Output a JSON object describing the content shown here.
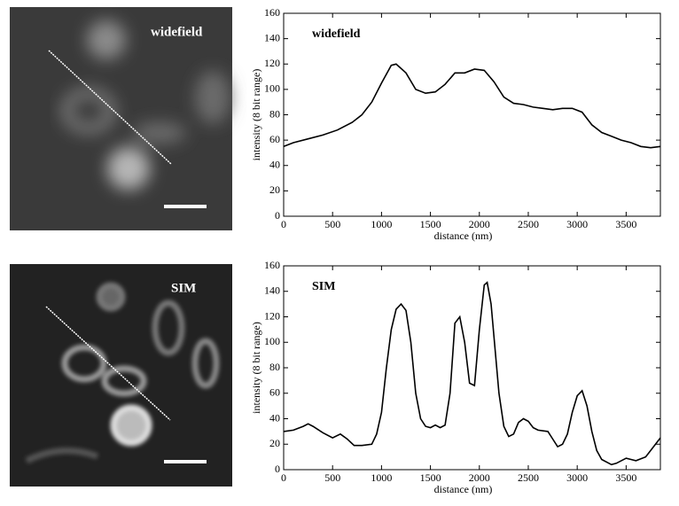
{
  "chart_data": [
    {
      "type": "line",
      "title": "widefield",
      "xlabel": "distance (nm)",
      "ylabel": "intensity (8 bit range)",
      "color": "#000000",
      "x": [
        0,
        100,
        250,
        400,
        550,
        700,
        800,
        900,
        1000,
        1100,
        1150,
        1250,
        1350,
        1450,
        1550,
        1650,
        1750,
        1850,
        1950,
        2050,
        2150,
        2250,
        2350,
        2450,
        2550,
        2650,
        2750,
        2850,
        2950,
        3050,
        3150,
        3250,
        3350,
        3450,
        3550,
        3650,
        3750,
        3850
      ],
      "values": [
        55,
        58,
        61,
        64,
        68,
        74,
        80,
        90,
        105,
        119,
        120,
        113,
        100,
        97,
        98,
        104,
        113,
        113,
        116,
        115,
        106,
        94,
        89,
        88,
        86,
        85,
        84,
        85,
        85,
        82,
        72,
        66,
        63,
        60,
        58,
        55,
        54,
        55
      ],
      "xlim": [
        0,
        3850
      ],
      "ylim": [
        0,
        160
      ],
      "xticks": [
        0,
        500,
        1000,
        1500,
        2000,
        2500,
        3000,
        3500
      ],
      "yticks": [
        0,
        20,
        40,
        60,
        80,
        100,
        120,
        140,
        160
      ]
    },
    {
      "type": "line",
      "title": "SIM",
      "xlabel": "distance (nm)",
      "ylabel": "intensity (8 bit range)",
      "color": "#000000",
      "x": [
        0,
        100,
        200,
        250,
        300,
        400,
        500,
        580,
        650,
        720,
        800,
        900,
        950,
        1000,
        1050,
        1100,
        1150,
        1200,
        1250,
        1300,
        1350,
        1400,
        1450,
        1500,
        1550,
        1600,
        1650,
        1700,
        1750,
        1800,
        1850,
        1900,
        1950,
        2000,
        2050,
        2080,
        2120,
        2200,
        2250,
        2300,
        2350,
        2400,
        2450,
        2500,
        2550,
        2600,
        2700,
        2750,
        2800,
        2850,
        2900,
        2950,
        3000,
        3050,
        3100,
        3150,
        3200,
        3250,
        3350,
        3400,
        3500,
        3550,
        3600,
        3700,
        3800,
        3850
      ],
      "values": [
        30,
        31,
        34,
        36,
        34,
        29,
        25,
        28,
        24,
        19,
        19,
        20,
        28,
        45,
        80,
        110,
        126,
        130,
        125,
        100,
        60,
        40,
        34,
        33,
        35,
        33,
        35,
        60,
        115,
        120,
        100,
        68,
        66,
        110,
        145,
        147,
        130,
        60,
        34,
        26,
        28,
        37,
        40,
        38,
        33,
        31,
        30,
        24,
        18,
        20,
        28,
        45,
        58,
        62,
        50,
        30,
        15,
        8,
        4,
        5,
        9,
        8,
        7,
        10,
        20,
        25
      ],
      "xlim": [
        0,
        3850
      ],
      "ylim": [
        0,
        160
      ],
      "xticks": [
        0,
        500,
        1000,
        1500,
        2000,
        2500,
        3000,
        3500
      ],
      "yticks": [
        0,
        20,
        40,
        60,
        80,
        100,
        120,
        140,
        160
      ]
    }
  ]
}
